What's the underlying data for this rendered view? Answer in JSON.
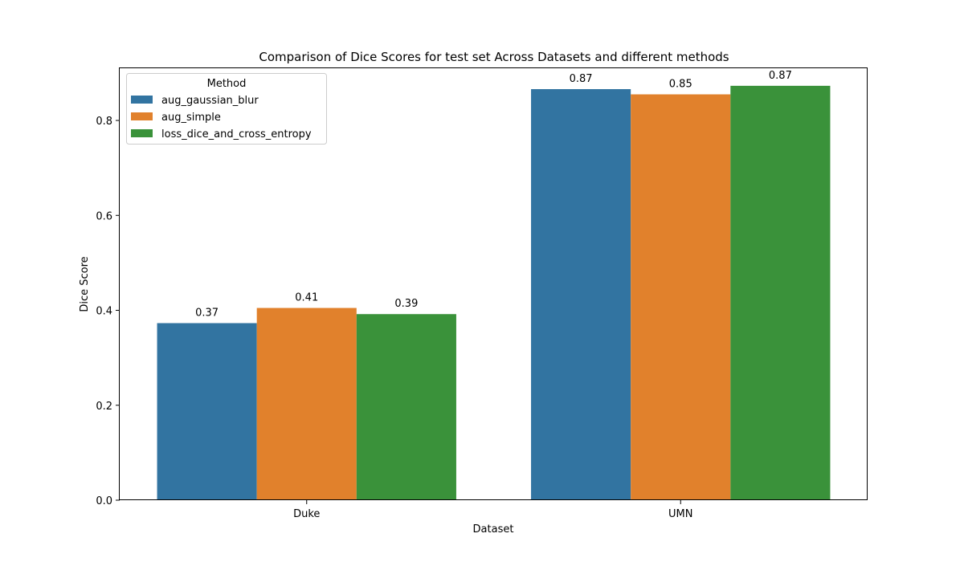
{
  "chart_data": {
    "type": "bar",
    "title": "Comparison of Dice Scores for test set Across Datasets and different methods",
    "xlabel": "Dataset",
    "ylabel": "Dice Score",
    "categories": [
      "Duke",
      "UMN"
    ],
    "series": [
      {
        "name": "aug_gaussian_blur",
        "values": [
          0.373,
          0.866
        ],
        "labels": [
          "0.37",
          "0.87"
        ],
        "color": "#3274a1"
      },
      {
        "name": "aug_simple",
        "values": [
          0.405,
          0.855
        ],
        "labels": [
          "0.41",
          "0.85"
        ],
        "color": "#e1812c"
      },
      {
        "name": "loss_dice_and_cross_entropy",
        "values": [
          0.392,
          0.873
        ],
        "labels": [
          "0.39",
          "0.87"
        ],
        "color": "#3a923a"
      }
    ],
    "ylim": [
      0,
      0.91
    ],
    "yticks": [
      0.0,
      0.2,
      0.4,
      0.6,
      0.8
    ],
    "ytick_labels": [
      "0.0",
      "0.2",
      "0.4",
      "0.6",
      "0.8"
    ],
    "grid": false,
    "legend": {
      "title": "Method",
      "position": "top-left"
    }
  }
}
